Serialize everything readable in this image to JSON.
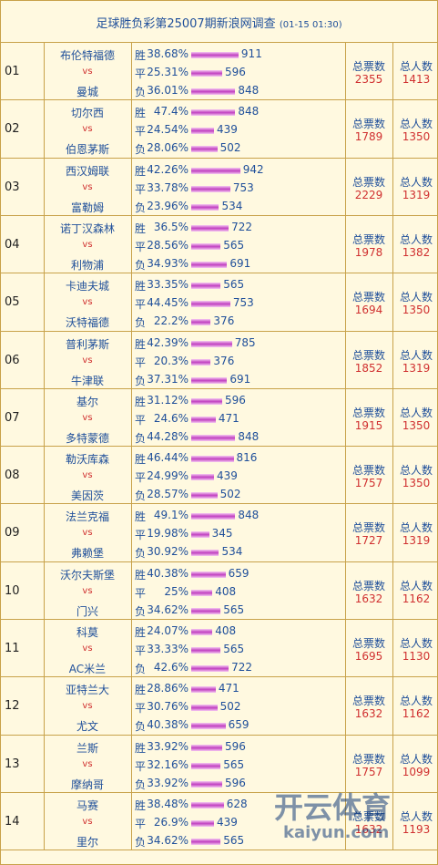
{
  "header": {
    "title": "足球胜负彩第25007期新浪网调查",
    "time": "(01-15 01:30)"
  },
  "labels": {
    "vs": "vs",
    "outcomes": [
      "胜",
      "平",
      "负"
    ],
    "total_votes": "总票数",
    "total_people": "总人数"
  },
  "matches": [
    {
      "no": "01",
      "home": "布伦特福德",
      "away": "曼城",
      "options": [
        {
          "pct": "38.68%",
          "count": 911
        },
        {
          "pct": "25.31%",
          "count": 596
        },
        {
          "pct": "36.01%",
          "count": 848
        }
      ],
      "votes": 2355,
      "people": 1413
    },
    {
      "no": "02",
      "home": "切尔西",
      "away": "伯恩茅斯",
      "options": [
        {
          "pct": "47.4%",
          "count": 848
        },
        {
          "pct": "24.54%",
          "count": 439
        },
        {
          "pct": "28.06%",
          "count": 502
        }
      ],
      "votes": 1789,
      "people": 1350
    },
    {
      "no": "03",
      "home": "西汉姆联",
      "away": "富勒姆",
      "options": [
        {
          "pct": "42.26%",
          "count": 942
        },
        {
          "pct": "33.78%",
          "count": 753
        },
        {
          "pct": "23.96%",
          "count": 534
        }
      ],
      "votes": 2229,
      "people": 1319
    },
    {
      "no": "04",
      "home": "诺丁汉森林",
      "away": "利物浦",
      "options": [
        {
          "pct": "36.5%",
          "count": 722
        },
        {
          "pct": "28.56%",
          "count": 565
        },
        {
          "pct": "34.93%",
          "count": 691
        }
      ],
      "votes": 1978,
      "people": 1382
    },
    {
      "no": "05",
      "home": "卡迪夫城",
      "away": "沃特福德",
      "options": [
        {
          "pct": "33.35%",
          "count": 565
        },
        {
          "pct": "44.45%",
          "count": 753
        },
        {
          "pct": "22.2%",
          "count": 376
        }
      ],
      "votes": 1694,
      "people": 1350
    },
    {
      "no": "06",
      "home": "普利茅斯",
      "away": "牛津联",
      "options": [
        {
          "pct": "42.39%",
          "count": 785
        },
        {
          "pct": "20.3%",
          "count": 376
        },
        {
          "pct": "37.31%",
          "count": 691
        }
      ],
      "votes": 1852,
      "people": 1319
    },
    {
      "no": "07",
      "home": "基尔",
      "away": "多特蒙德",
      "options": [
        {
          "pct": "31.12%",
          "count": 596
        },
        {
          "pct": "24.6%",
          "count": 471
        },
        {
          "pct": "44.28%",
          "count": 848
        }
      ],
      "votes": 1915,
      "people": 1350
    },
    {
      "no": "08",
      "home": "勒沃库森",
      "away": "美因茨",
      "options": [
        {
          "pct": "46.44%",
          "count": 816
        },
        {
          "pct": "24.99%",
          "count": 439
        },
        {
          "pct": "28.57%",
          "count": 502
        }
      ],
      "votes": 1757,
      "people": 1350
    },
    {
      "no": "09",
      "home": "法兰克福",
      "away": "弗赖堡",
      "options": [
        {
          "pct": "49.1%",
          "count": 848
        },
        {
          "pct": "19.98%",
          "count": 345
        },
        {
          "pct": "30.92%",
          "count": 534
        }
      ],
      "votes": 1727,
      "people": 1319
    },
    {
      "no": "10",
      "home": "沃尔夫斯堡",
      "away": "门兴",
      "options": [
        {
          "pct": "40.38%",
          "count": 659
        },
        {
          "pct": "25%",
          "count": 408
        },
        {
          "pct": "34.62%",
          "count": 565
        }
      ],
      "votes": 1632,
      "people": 1162
    },
    {
      "no": "11",
      "home": "科莫",
      "away": "AC米兰",
      "options": [
        {
          "pct": "24.07%",
          "count": 408
        },
        {
          "pct": "33.33%",
          "count": 565
        },
        {
          "pct": "42.6%",
          "count": 722
        }
      ],
      "votes": 1695,
      "people": 1130
    },
    {
      "no": "12",
      "home": "亚特兰大",
      "away": "尤文",
      "options": [
        {
          "pct": "28.86%",
          "count": 471
        },
        {
          "pct": "30.76%",
          "count": 502
        },
        {
          "pct": "40.38%",
          "count": 659
        }
      ],
      "votes": 1632,
      "people": 1162
    },
    {
      "no": "13",
      "home": "兰斯",
      "away": "摩纳哥",
      "options": [
        {
          "pct": "33.92%",
          "count": 596
        },
        {
          "pct": "32.16%",
          "count": 565
        },
        {
          "pct": "33.92%",
          "count": 596
        }
      ],
      "votes": 1757,
      "people": 1099
    },
    {
      "no": "14",
      "home": "马赛",
      "away": "里尔",
      "options": [
        {
          "pct": "38.48%",
          "count": 628
        },
        {
          "pct": "26.9%",
          "count": 439
        },
        {
          "pct": "34.62%",
          "count": 565
        }
      ],
      "votes": 1632,
      "people": 1193
    }
  ],
  "watermark": {
    "brand": "开云体育",
    "url": "kaiyun.com"
  }
}
